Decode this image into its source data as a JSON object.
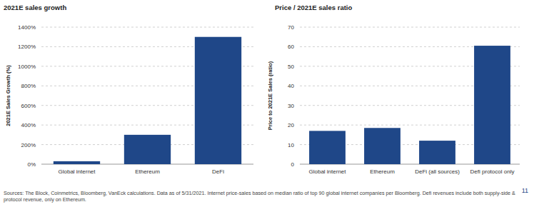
{
  "chart_data": [
    {
      "type": "bar",
      "title": "2021E sales growth",
      "y_label": "2021E Sales Growth (%)",
      "categories": [
        "Global internet",
        "Ethereum",
        "DeFi"
      ],
      "values": [
        30,
        300,
        1300
      ],
      "color": "#1f4788",
      "ylim": [
        0,
        1400
      ],
      "yticks": [
        {
          "value": 0,
          "label": "0%"
        },
        {
          "value": 200,
          "label": "200%"
        },
        {
          "value": 400,
          "label": "400%"
        },
        {
          "value": 600,
          "label": "600%"
        },
        {
          "value": 800,
          "label": "800%"
        },
        {
          "value": 1000,
          "label": "1000%"
        },
        {
          "value": 1200,
          "label": "1200%"
        },
        {
          "value": 1400,
          "label": "1400%"
        }
      ],
      "grid": true
    },
    {
      "type": "bar",
      "title": "Price / 2021E sales ratio",
      "y_label": "Price to 2021E Sales (ratio)",
      "categories": [
        "Global internet",
        "Ethereum",
        "DeFi (all sources)",
        "Defi protocol only"
      ],
      "values": [
        17,
        18.5,
        12,
        60.5
      ],
      "color": "#1f4788",
      "ylim": [
        0,
        70
      ],
      "yticks": [
        0,
        10,
        20,
        30,
        40,
        50,
        60,
        70
      ],
      "grid": true
    }
  ],
  "footer": {
    "sources": [
      "Sources: The Block, Coinmetrics, Bloomberg, VanEck calculations. Data as of 5/31/2021. Internet price-sales based on median ratio of top 90 global internet companies per Bloomberg. Defi revenues include both supply-side &",
      "protocol revenue, only on Ethereum."
    ],
    "page": "11"
  }
}
